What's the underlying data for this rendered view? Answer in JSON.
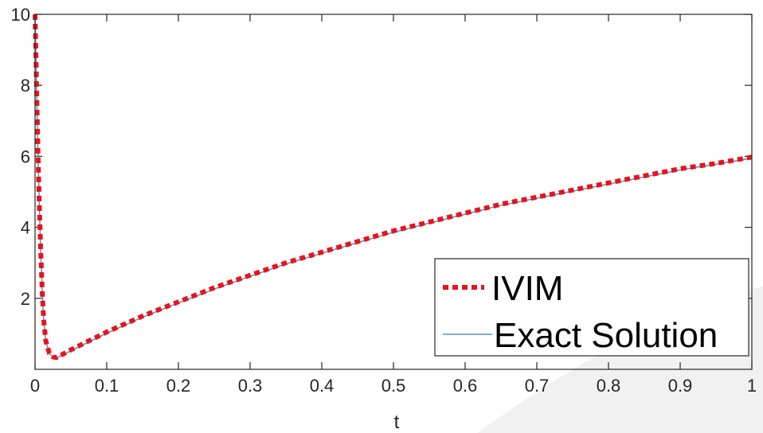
{
  "chart_data": {
    "type": "line",
    "title": "",
    "xlabel": "t",
    "ylabel": "",
    "xlim": [
      0,
      1
    ],
    "ylim": [
      0,
      10
    ],
    "xticks": [
      "0",
      "0.1",
      "0.2",
      "0.3",
      "0.4",
      "0.5",
      "0.6",
      "0.7",
      "0.8",
      "0.9",
      "1"
    ],
    "yticks": [
      "2",
      "4",
      "6",
      "8",
      "10"
    ],
    "grid": false,
    "legend_position": "bottom-right",
    "series": [
      {
        "name": "IVIM",
        "style": "dotted",
        "color": "#e8131b",
        "x": [
          0,
          0.002,
          0.004,
          0.006,
          0.008,
          0.01,
          0.012,
          0.015,
          0.02,
          0.025,
          0.03,
          0.05,
          0.1,
          0.15,
          0.2,
          0.25,
          0.3,
          0.35,
          0.4,
          0.45,
          0.5,
          0.55,
          0.6,
          0.65,
          0.7,
          0.75,
          0.8,
          0.85,
          0.9,
          0.95,
          1.0
        ],
        "y": [
          10.0,
          8.1,
          6.2,
          4.6,
          3.3,
          2.2,
          1.4,
          0.8,
          0.45,
          0.35,
          0.33,
          0.55,
          1.05,
          1.5,
          1.9,
          2.3,
          2.65,
          3.0,
          3.3,
          3.6,
          3.9,
          4.15,
          4.4,
          4.65,
          4.85,
          5.05,
          5.25,
          5.45,
          5.65,
          5.8,
          5.98
        ]
      },
      {
        "name": "Exact Solution",
        "style": "solid",
        "color": "#5b8ec6",
        "x": [
          0,
          0.002,
          0.004,
          0.006,
          0.008,
          0.01,
          0.012,
          0.015,
          0.02,
          0.025,
          0.03,
          0.05,
          0.1,
          0.15,
          0.2,
          0.25,
          0.3,
          0.35,
          0.4,
          0.45,
          0.5,
          0.55,
          0.6,
          0.65,
          0.7,
          0.75,
          0.8,
          0.85,
          0.9,
          0.95,
          1.0
        ],
        "y": [
          10.0,
          8.1,
          6.2,
          4.6,
          3.3,
          2.2,
          1.4,
          0.8,
          0.45,
          0.35,
          0.32,
          0.52,
          1.02,
          1.47,
          1.87,
          2.26,
          2.62,
          2.97,
          3.27,
          3.57,
          3.86,
          4.12,
          4.37,
          4.62,
          4.82,
          5.02,
          5.22,
          5.42,
          5.62,
          5.78,
          5.95
        ]
      }
    ]
  },
  "colors": {
    "axis": "#262626",
    "background": "#ffffff",
    "watermark": "#f1f1f1"
  }
}
